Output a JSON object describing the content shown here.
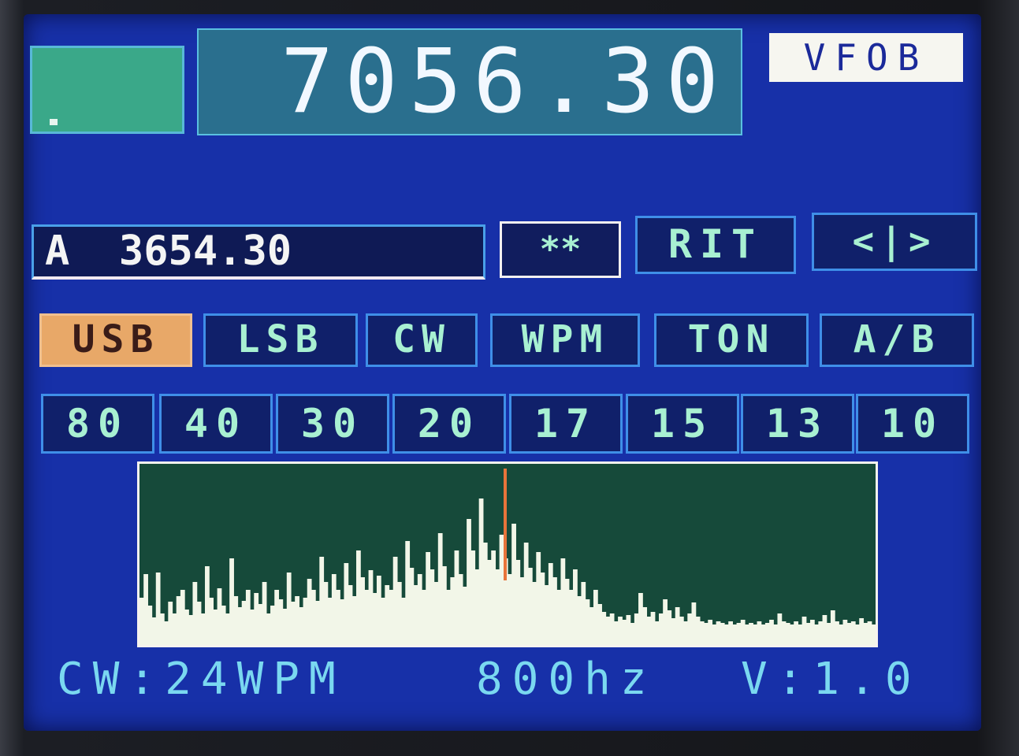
{
  "display": {
    "main_frequency": "7056.30",
    "vfo_label": "VFOB",
    "sub_frequency": "A  3654.30",
    "star_button": "**",
    "rit_button": "RIT",
    "step_button": "<|>"
  },
  "modes": [
    {
      "label": "USB",
      "active": true
    },
    {
      "label": "LSB",
      "active": false
    },
    {
      "label": "CW",
      "active": false
    },
    {
      "label": "WPM",
      "active": false
    },
    {
      "label": "TON",
      "active": false
    },
    {
      "label": "A/B",
      "active": false
    }
  ],
  "bands": [
    "80",
    "40",
    "30",
    "20",
    "17",
    "15",
    "13",
    "10"
  ],
  "status": {
    "cw_speed": "CW:24WPM",
    "tone": "800hz",
    "version": "V:1.0"
  },
  "spectrum": {
    "marker_color": "#e8743a",
    "fill_color": "#f2f6e8",
    "background_color": "#164a3a"
  }
}
